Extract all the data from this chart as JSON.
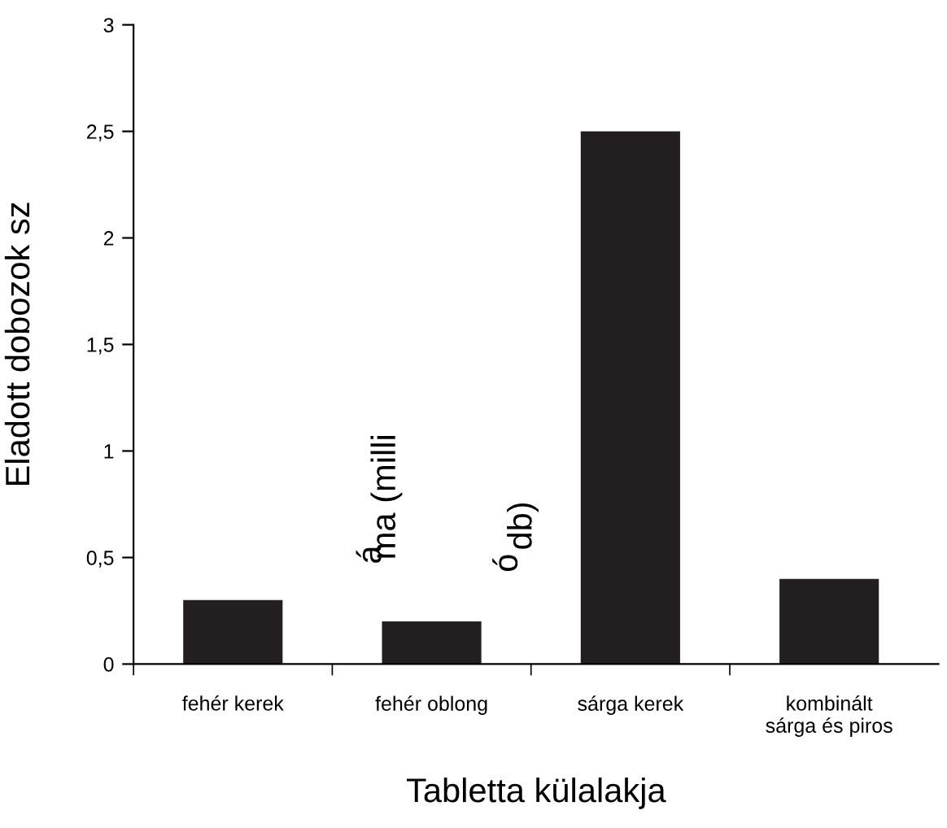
{
  "chart_data": {
    "type": "bar",
    "xlabel": "Tabletta külalakja",
    "ylabel": "Eladott dobozok sz",
    "annotations": [
      "á",
      "ma (milli",
      "ó",
      "db)"
    ],
    "categories": [
      "fehér kerek",
      "fehér oblong",
      "sárga kerek",
      "kombinált\nsárga és piros"
    ],
    "values": [
      0.3,
      0.2,
      2.5,
      0.4
    ],
    "color": "#231f20",
    "ylim": [
      0,
      3
    ],
    "yticks": [
      0,
      {
        "value": 0.5,
        "label": "0,5"
      },
      1,
      {
        "value": 1.5,
        "label": "1,5"
      },
      2,
      {
        "value": 2.5,
        "label": "2,5"
      },
      3
    ],
    "grid": false,
    "legend": false
  }
}
